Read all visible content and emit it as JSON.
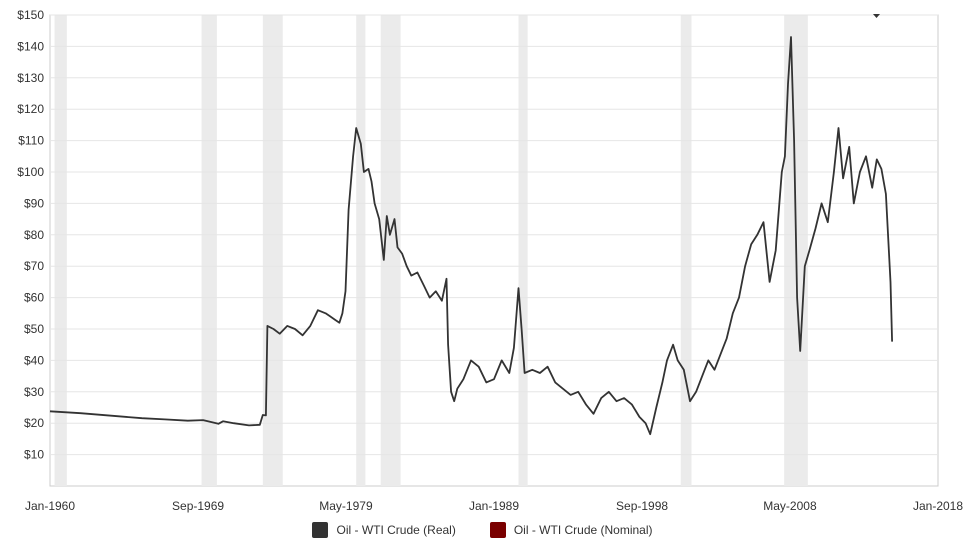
{
  "chart_data": {
    "type": "line",
    "xlim": [
      "Jan-1960",
      "Jan-2018"
    ],
    "ylim": [
      0,
      150
    ],
    "grid": true,
    "legend_position": "bottom-center",
    "y_ticks": [
      "$10",
      "$20",
      "$30",
      "$40",
      "$50",
      "$60",
      "$70",
      "$80",
      "$90",
      "$100",
      "$110",
      "$120",
      "$130",
      "$140",
      "$150"
    ],
    "x_ticks": [
      "Jan-1960",
      "Sep-1969",
      "May-1979",
      "Jan-1989",
      "Sep-1998",
      "May-2008",
      "Jan-2018"
    ],
    "recessions": [
      [
        1960.3,
        1961.1
      ],
      [
        1969.9,
        1970.9
      ],
      [
        1973.9,
        1975.2
      ],
      [
        1980.0,
        1980.6
      ],
      [
        1981.6,
        1982.9
      ],
      [
        1990.6,
        1991.2
      ],
      [
        2001.2,
        2001.9
      ],
      [
        2007.95,
        2009.5
      ]
    ],
    "series": [
      {
        "name": "Oil - WTI Crude (Real)",
        "color": "#333333",
        "x": [
          1960.0,
          1962.0,
          1964.0,
          1966.0,
          1967.5,
          1969.0,
          1970.0,
          1971.0,
          1971.3,
          1972.0,
          1973.0,
          1973.7,
          1973.9,
          1974.1,
          1974.2,
          1974.6,
          1975.0,
          1975.5,
          1976.0,
          1976.5,
          1977.0,
          1977.5,
          1978.0,
          1978.3,
          1978.6,
          1978.9,
          1979.1,
          1979.3,
          1979.5,
          1979.8,
          1980.0,
          1980.3,
          1980.5,
          1980.8,
          1981.0,
          1981.2,
          1981.5,
          1981.8,
          1982.0,
          1982.2,
          1982.5,
          1982.7,
          1983.0,
          1983.3,
          1983.6,
          1984.0,
          1984.4,
          1984.8,
          1985.2,
          1985.6,
          1985.9,
          1986.0,
          1986.2,
          1986.4,
          1986.6,
          1987.0,
          1987.5,
          1988.0,
          1988.5,
          1989.0,
          1989.5,
          1990.0,
          1990.3,
          1990.6,
          1990.8,
          1991.0,
          1991.5,
          1992.0,
          1992.5,
          1993.0,
          1993.5,
          1994.0,
          1994.5,
          1995.0,
          1995.5,
          1996.0,
          1996.5,
          1997.0,
          1997.5,
          1998.0,
          1998.5,
          1998.9,
          1999.2,
          1999.6,
          2000.0,
          2000.3,
          2000.7,
          2001.0,
          2001.4,
          2001.8,
          2002.2,
          2002.6,
          2003.0,
          2003.4,
          2003.8,
          2004.2,
          2004.6,
          2005.0,
          2005.4,
          2005.8,
          2006.2,
          2006.6,
          2007.0,
          2007.4,
          2007.8,
          2008.0,
          2008.2,
          2008.4,
          2008.6,
          2008.8,
          2009.0,
          2009.3,
          2009.6,
          2010.0,
          2010.4,
          2010.8,
          2011.2,
          2011.5,
          2011.8,
          2012.2,
          2012.5,
          2012.9,
          2013.3,
          2013.7,
          2014.0,
          2014.3,
          2014.6,
          2014.9,
          2015.0
        ],
        "values": [
          23.8,
          23.2,
          22.4,
          21.6,
          21.2,
          20.8,
          21.0,
          19.8,
          20.6,
          20.0,
          19.3,
          19.5,
          22.6,
          22.5,
          51.0,
          50.0,
          48.5,
          51.0,
          50.0,
          48.0,
          51.0,
          56.0,
          55.0,
          54.0,
          53.0,
          52.0,
          55.0,
          62.0,
          88.0,
          105.0,
          114.0,
          109.0,
          100.0,
          101.0,
          97.0,
          90.0,
          85.0,
          72.0,
          86.0,
          80.0,
          85.0,
          76.0,
          74.0,
          70.0,
          67.0,
          68.0,
          64.0,
          60.0,
          62.0,
          59.0,
          66.0,
          45.0,
          30.0,
          27.0,
          31.0,
          34.0,
          40.0,
          38.0,
          33.0,
          34.0,
          40.0,
          36.0,
          44.0,
          63.0,
          50.0,
          36.0,
          37.0,
          36.0,
          38.0,
          33.0,
          31.0,
          29.0,
          30.0,
          26.0,
          23.0,
          28.0,
          30.0,
          27.0,
          28.0,
          26.0,
          22.0,
          20.0,
          16.5,
          25.0,
          33.0,
          40.0,
          45.0,
          40.0,
          37.0,
          27.0,
          30.0,
          35.0,
          40.0,
          37.0,
          42.0,
          47.0,
          55.0,
          60.0,
          70.0,
          77.0,
          80.0,
          84.0,
          65.0,
          75.0,
          100.0,
          105.0,
          128.0,
          143.0,
          110.0,
          60.0,
          43.0,
          70.0,
          75.0,
          82.0,
          90.0,
          84.0,
          100.0,
          114.0,
          98.0,
          108.0,
          90.0,
          100.0,
          105.0,
          95.0,
          104.0,
          101.0,
          93.0,
          65.0,
          46.0
        ]
      },
      {
        "name": "Oil - WTI Crude (Nominal)",
        "color": "#7a0000",
        "hidden": true,
        "x": [],
        "values": []
      }
    ]
  }
}
